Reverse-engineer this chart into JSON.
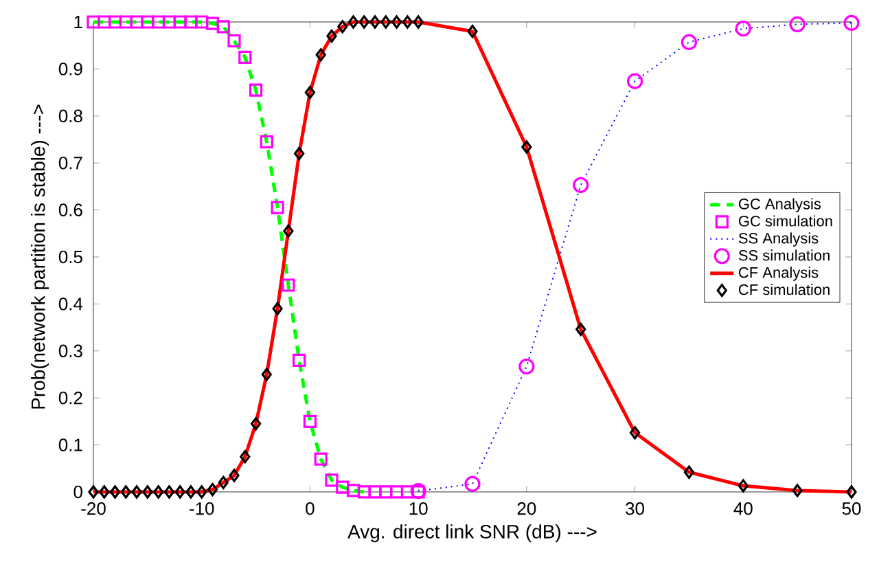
{
  "chart_data": {
    "type": "line",
    "xlabel": "Avg. direct link SNR (dB) --->",
    "ylabel": "Prob(network partition is stable)  --->",
    "xlim": [
      -20,
      50
    ],
    "xticks": [
      -20,
      -10,
      0,
      10,
      20,
      30,
      40,
      50
    ],
    "ylim": [
      0,
      1
    ],
    "yticks": [
      0,
      0.1,
      0.2,
      0.3,
      0.4,
      0.5,
      0.6,
      0.7,
      0.8,
      0.9,
      1
    ],
    "grid": false,
    "legend": "right",
    "series": [
      {
        "name": "GC Analysis",
        "color": "#00ff00",
        "line_style": "dashed",
        "marker": "none",
        "x": [
          -20,
          -19,
          -18,
          -17,
          -16,
          -15,
          -14,
          -13,
          -12,
          -11,
          -10,
          -9,
          -8,
          -7,
          -6,
          -5,
          -4,
          -3,
          -2,
          -1,
          0,
          1,
          2,
          3,
          4,
          5
        ],
        "values": [
          1,
          1,
          1,
          1,
          1,
          1,
          1,
          1,
          1,
          1,
          1,
          0.997,
          0.99,
          0.96,
          0.925,
          0.855,
          0.745,
          0.605,
          0.44,
          0.28,
          0.15,
          0.07,
          0.025,
          0.01,
          0.003,
          0
        ]
      },
      {
        "name": "GC simulation",
        "type": "scatter",
        "color": "#ff00ff",
        "marker": "square",
        "x": [
          -20,
          -19,
          -18,
          -17,
          -16,
          -15,
          -14,
          -13,
          -12,
          -11,
          -10,
          -9,
          -8,
          -7,
          -6,
          -5,
          -4,
          -3,
          -2,
          -1,
          0,
          1,
          2,
          3,
          4,
          5,
          6,
          7,
          8,
          9,
          10
        ],
        "values": [
          1,
          1,
          1,
          1,
          1,
          1,
          1,
          1,
          1,
          1,
          1,
          0.997,
          0.99,
          0.96,
          0.925,
          0.855,
          0.745,
          0.605,
          0.44,
          0.28,
          0.15,
          0.07,
          0.025,
          0.01,
          0.003,
          0,
          0,
          0,
          0,
          0,
          0
        ]
      },
      {
        "name": "SS Analysis",
        "color": "#0000ff",
        "line_style": "dotted",
        "marker": "none",
        "x": [
          10,
          15,
          20,
          25,
          30,
          35,
          40,
          45,
          50
        ],
        "values": [
          0.002,
          0.017,
          0.267,
          0.653,
          0.874,
          0.957,
          0.986,
          0.995,
          0.998
        ]
      },
      {
        "name": "SS simulation",
        "type": "scatter",
        "color": "#ff00ff",
        "marker": "circle",
        "x": [
          10,
          15,
          20,
          25,
          30,
          35,
          40,
          45,
          50
        ],
        "values": [
          0.002,
          0.017,
          0.267,
          0.653,
          0.874,
          0.957,
          0.986,
          0.995,
          0.998
        ]
      },
      {
        "name": "CF Analysis",
        "color": "#ff0000",
        "line_style": "solid",
        "marker": "none",
        "x": [
          -20,
          -19,
          -18,
          -17,
          -16,
          -15,
          -14,
          -13,
          -12,
          -11,
          -10,
          -9,
          -8,
          -7,
          -6,
          -5,
          -4,
          -3,
          -2,
          -1,
          0,
          1,
          2,
          3,
          4,
          5,
          6,
          7,
          8,
          9,
          10,
          15,
          20,
          25,
          30,
          35,
          40,
          45,
          50
        ],
        "values": [
          0,
          0,
          0,
          0,
          0,
          0,
          0,
          0,
          0,
          0,
          0,
          0.005,
          0.02,
          0.035,
          0.075,
          0.145,
          0.25,
          0.39,
          0.555,
          0.72,
          0.85,
          0.93,
          0.97,
          0.99,
          1,
          1,
          1,
          1,
          1,
          1,
          1,
          0.98,
          0.734,
          0.346,
          0.126,
          0.042,
          0.013,
          0.003,
          0
        ]
      },
      {
        "name": "CF simulation",
        "type": "scatter",
        "color": "#000000",
        "marker": "diamond",
        "x": [
          -20,
          -19,
          -18,
          -17,
          -16,
          -15,
          -14,
          -13,
          -12,
          -11,
          -10,
          -9,
          -8,
          -7,
          -6,
          -5,
          -4,
          -3,
          -2,
          -1,
          0,
          1,
          2,
          3,
          4,
          5,
          6,
          7,
          8,
          9,
          10,
          15,
          20,
          25,
          30,
          35,
          40,
          45,
          50
        ],
        "values": [
          0,
          0,
          0,
          0,
          0,
          0,
          0,
          0,
          0,
          0,
          0,
          0.005,
          0.02,
          0.035,
          0.075,
          0.145,
          0.25,
          0.39,
          0.555,
          0.72,
          0.85,
          0.93,
          0.97,
          0.99,
          1,
          1,
          1,
          1,
          1,
          1,
          1,
          0.98,
          0.734,
          0.346,
          0.126,
          0.042,
          0.013,
          0.003,
          0
        ]
      }
    ]
  }
}
